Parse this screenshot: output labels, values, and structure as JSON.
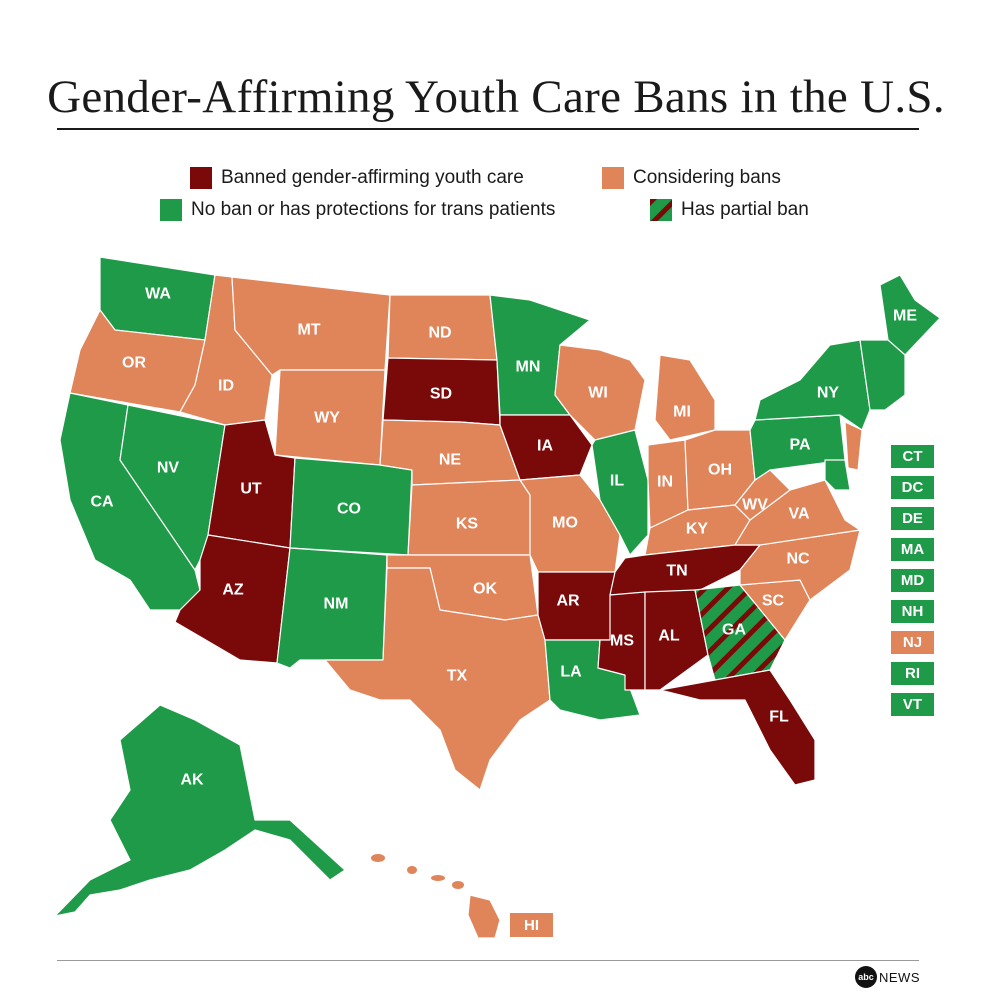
{
  "title": "Gender-Affirming Youth Care Bans in the U.S.",
  "colors": {
    "banned": "#7a0a0a",
    "considering": "#e0845a",
    "no_ban": "#1e9a48",
    "partial_stripe": "#7a0a0a"
  },
  "legend": {
    "banned": "Banned gender-affirming youth care",
    "considering": "Considering bans",
    "no_ban": "No ban or has protections for trans patients",
    "partial": "Has partial ban"
  },
  "states": {
    "WA": "no_ban",
    "OR": "considering",
    "CA": "no_ban",
    "NV": "no_ban",
    "ID": "considering",
    "MT": "considering",
    "WY": "considering",
    "UT": "banned",
    "AZ": "banned",
    "CO": "no_ban",
    "NM": "no_ban",
    "ND": "considering",
    "SD": "banned",
    "NE": "considering",
    "KS": "considering",
    "OK": "considering",
    "TX": "considering",
    "MN": "no_ban",
    "IA": "banned",
    "MO": "considering",
    "AR": "banned",
    "LA": "no_ban",
    "WI": "considering",
    "IL": "no_ban",
    "MI": "considering",
    "IN": "considering",
    "OH": "considering",
    "KY": "considering",
    "TN": "banned",
    "MS": "banned",
    "AL": "banned",
    "GA": "partial",
    "FL": "banned",
    "SC": "considering",
    "NC": "considering",
    "VA": "considering",
    "WV": "considering",
    "PA": "no_ban",
    "NY": "no_ban",
    "ME": "no_ban",
    "AK": "no_ban",
    "HI": "considering"
  },
  "small_states": [
    {
      "label": "CT",
      "status": "no_ban"
    },
    {
      "label": "DC",
      "status": "no_ban"
    },
    {
      "label": "DE",
      "status": "no_ban"
    },
    {
      "label": "MA",
      "status": "no_ban"
    },
    {
      "label": "MD",
      "status": "no_ban"
    },
    {
      "label": "NH",
      "status": "no_ban"
    },
    {
      "label": "NJ",
      "status": "considering"
    },
    {
      "label": "RI",
      "status": "no_ban"
    },
    {
      "label": "VT",
      "status": "no_ban"
    }
  ],
  "credit": {
    "logo_text": "abc",
    "name": "NEWS"
  }
}
